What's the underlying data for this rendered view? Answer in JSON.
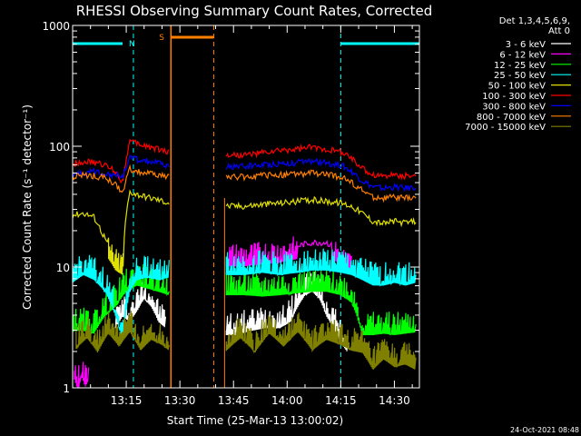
{
  "chart_data": {
    "type": "line",
    "title": "RHESSI Observing Summary Count Rates, Corrected",
    "xlabel": "Start Time (25-Mar-13 13:00:02)",
    "ylabel": "Corrected Count Rate (s⁻¹ detector⁻¹)",
    "yscale": "log",
    "ylim": [
      1,
      1000
    ],
    "xlim_minutes": [
      0,
      97
    ],
    "x_ticks": [
      "13:15",
      "13:30",
      "13:45",
      "14:00",
      "14:15",
      "14:30"
    ],
    "x_tick_minutes": [
      15,
      30,
      45,
      60,
      75,
      90
    ],
    "y_ticks": [
      "1",
      "10",
      "100",
      "1000"
    ],
    "y_tick_values": [
      1,
      10,
      100,
      1000
    ],
    "grid": false,
    "legend_position": "right",
    "legend_header": [
      "Det 1,3,4,5,6,9,",
      "Att 0"
    ],
    "annotations": [
      {
        "label": "N",
        "color": "#00ffff",
        "type": "night",
        "intervals": [
          [
            0,
            17
          ],
          [
            75,
            97
          ]
        ]
      },
      {
        "label": "S",
        "color": "#ff8000",
        "type": "saa",
        "intervals": [
          [
            27.5,
            39.5
          ]
        ]
      }
    ],
    "gap_minutes": [
      27.5,
      42.5
    ],
    "series": [
      {
        "name": "3 - 6 keV",
        "color": "#ffffff",
        "segments": [
          {
            "x": [
              12,
              14,
              16,
              18,
              20,
              22,
              24,
              26
            ],
            "y": [
              4,
              5,
              4.5,
              5.5,
              7,
              6,
              4.5,
              4
            ]
          },
          {
            "x": [
              43,
              46,
              50,
              54,
              58,
              61,
              63,
              65,
              67,
              69,
              71,
              73,
              75,
              77
            ],
            "y": [
              3.5,
              3.5,
              3.8,
              4,
              4,
              4.5,
              6,
              7.5,
              8,
              7,
              5,
              4,
              3,
              2.5
            ]
          }
        ]
      },
      {
        "name": "6 - 12 keV",
        "color": "#ff00ff",
        "segments": [
          {
            "x": [
              0.5,
              1.5,
              2.5,
              3.5,
              4.5
            ],
            "y": [
              1.5,
              1.2,
              1.6,
              1.3,
              1.5
            ]
          },
          {
            "x": [
              43,
              48,
              53,
              58,
              63,
              67,
              71,
              74,
              76,
              78
            ],
            "y": [
              13,
              13,
              13.5,
              14,
              15,
              16,
              16,
              14,
              12,
              11
            ]
          }
        ]
      },
      {
        "name": "12 - 25 keV",
        "color": "#00ff00",
        "segments": [
          {
            "x": [
              0,
              3,
              6,
              9,
              12,
              15,
              18,
              21,
              24,
              27
            ],
            "y": [
              3.8,
              3.8,
              3.6,
              5,
              6,
              8,
              9,
              8.5,
              8,
              7.5
            ]
          },
          {
            "x": [
              43,
              48,
              53,
              58,
              63,
              67,
              71,
              75,
              78,
              81,
              84,
              87,
              90,
              93,
              96
            ],
            "y": [
              7.5,
              7.5,
              7.3,
              7.5,
              7.8,
              8,
              8,
              7.5,
              6.5,
              3.5,
              3.5,
              3.6,
              3.5,
              3.6,
              3.7
            ]
          }
        ]
      },
      {
        "name": "25 - 50 keV",
        "color": "#00ffff",
        "segments": [
          {
            "x": [
              0,
              3,
              6,
              9,
              12,
              14,
              16,
              18,
              21,
              24,
              27
            ],
            "y": [
              9.5,
              11,
              10,
              8,
              5,
              3,
              8,
              10,
              10.5,
              10,
              10.5
            ]
          },
          {
            "x": [
              43,
              48,
              53,
              58,
              63,
              67,
              71,
              75,
              78,
              81,
              84,
              87,
              90,
              93,
              96
            ],
            "y": [
              11,
              11,
              11.5,
              11,
              11.5,
              12,
              12,
              11.5,
              11,
              10,
              9,
              9,
              9.5,
              9,
              9.5
            ]
          }
        ]
      },
      {
        "name": "50 - 100 keV",
        "color": "#e0e000",
        "segments": [
          {
            "x": [
              0,
              3,
              6,
              8,
              10,
              12,
              14,
              16,
              18,
              21,
              24,
              27
            ],
            "y": [
              27,
              28,
              26,
              20,
              15,
              12,
              11,
              42,
              40,
              38,
              36,
              34
            ]
          },
          {
            "x": [
              43,
              48,
              53,
              58,
              63,
              67,
              71,
              75,
              78,
              81,
              84,
              87,
              90,
              93,
              96
            ],
            "y": [
              32,
              32,
              33,
              34,
              35,
              36,
              35,
              34,
              32,
              28,
              24,
              23,
              24,
              23,
              24
            ]
          }
        ]
      },
      {
        "name": "100 - 300 keV",
        "color": "#ff0000",
        "segments": [
          {
            "x": [
              0,
              3,
              6,
              9,
              12,
              14,
              16,
              18,
              21,
              24,
              27
            ],
            "y": [
              72,
              75,
              73,
              70,
              62,
              50,
              110,
              105,
              100,
              95,
              90
            ]
          },
          {
            "x": [
              43,
              48,
              53,
              58,
              63,
              67,
              71,
              75,
              78,
              81,
              84,
              87,
              90,
              93,
              96
            ],
            "y": [
              85,
              85,
              88,
              92,
              95,
              98,
              95,
              90,
              80,
              65,
              58,
              57,
              58,
              57,
              58
            ]
          }
        ]
      },
      {
        "name": "300 - 800 keV",
        "color": "#0000ff",
        "segments": [
          {
            "x": [
              0,
              3,
              6,
              9,
              12,
              14,
              16,
              18,
              21,
              24,
              27
            ],
            "y": [
              58,
              60,
              62,
              60,
              58,
              56,
              80,
              78,
              75,
              72,
              68
            ]
          },
          {
            "x": [
              43,
              48,
              53,
              58,
              63,
              67,
              71,
              75,
              78,
              81,
              84,
              87,
              90,
              93,
              96
            ],
            "y": [
              68,
              68,
              70,
              72,
              73,
              75,
              73,
              70,
              62,
              52,
              46,
              45,
              46,
              45,
              46
            ]
          }
        ]
      },
      {
        "name": "800 - 7000 keV",
        "color": "#ff8000",
        "segments": [
          {
            "x": [
              0,
              3,
              6,
              9,
              12,
              14,
              16,
              18,
              21,
              24,
              27
            ],
            "y": [
              55,
              58,
              57,
              55,
              48,
              40,
              65,
              62,
              60,
              58,
              55
            ]
          },
          {
            "x": [
              43,
              48,
              53,
              58,
              63,
              67,
              71,
              75,
              78,
              81,
              84,
              87,
              90,
              93,
              96
            ],
            "y": [
              56,
              56,
              57,
              58,
              59,
              60,
              58,
              56,
              50,
              43,
              38,
              37,
              38,
              37,
              38
            ]
          }
        ]
      },
      {
        "name": "7000 - 15000 keV",
        "color": "#808000",
        "segments": [
          {
            "x": [
              1,
              4,
              7,
              10,
              13,
              16,
              19,
              22,
              25,
              27
            ],
            "y": [
              2.7,
              3.3,
              2.5,
              3.6,
              2.8,
              3.7,
              2.6,
              3.2,
              2.9,
              2.6
            ]
          },
          {
            "x": [
              43,
              47,
              51,
              55,
              59,
              63,
              67,
              71,
              75,
              78,
              81,
              84,
              87,
              90,
              93,
              96
            ],
            "y": [
              2.6,
              3.3,
              2.5,
              3.6,
              2.8,
              3.7,
              2.6,
              3.2,
              2.9,
              2.6,
              2.5,
              1.8,
              2.2,
              1.9,
              2.0,
              1.8
            ]
          }
        ]
      }
    ]
  },
  "footer": {
    "date": "24-Oct-2021 08:48"
  }
}
